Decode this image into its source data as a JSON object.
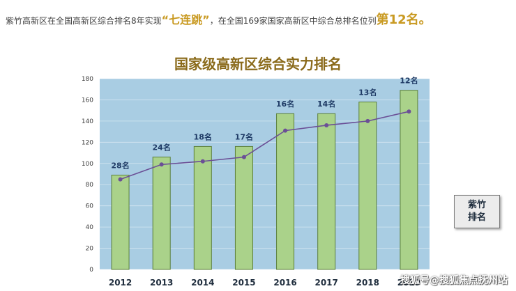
{
  "headline": {
    "pre": "紫竹高新区在全国高新区综合排名8年实现",
    "quote": "“七连跳”",
    "mid": "，在全国169家国家高新区中综合总排名位列",
    "rank": "第12名。"
  },
  "side_box": {
    "line1": "紫竹",
    "line2": "排名"
  },
  "watermark": "搜狐号@搜狐焦点抚州站",
  "colors": {
    "plot_bg": "#a9cde3",
    "bar_fill": "#aad28a",
    "bar_stroke": "#5b7f3a",
    "line": "#6b4f96",
    "label": "#1f3b66",
    "title": "#8a6a1a"
  },
  "chart_data": {
    "type": "bar",
    "title": "国家级高新区综合实力排名",
    "categories": [
      "2012",
      "2013",
      "2014",
      "2015",
      "2016",
      "2017",
      "2018",
      "2019"
    ],
    "bar_values": [
      89,
      106,
      116,
      116,
      147,
      147,
      158,
      169
    ],
    "line_values": [
      85,
      99,
      102,
      106,
      131,
      136,
      140,
      149
    ],
    "labels": [
      "28名",
      "24名",
      "18名",
      "17名",
      "16名",
      "14名",
      "13名",
      "12名"
    ],
    "ylim": [
      0,
      180
    ],
    "yticks": [
      0,
      20,
      40,
      60,
      80,
      100,
      120,
      140,
      160,
      180
    ],
    "grid": true
  }
}
